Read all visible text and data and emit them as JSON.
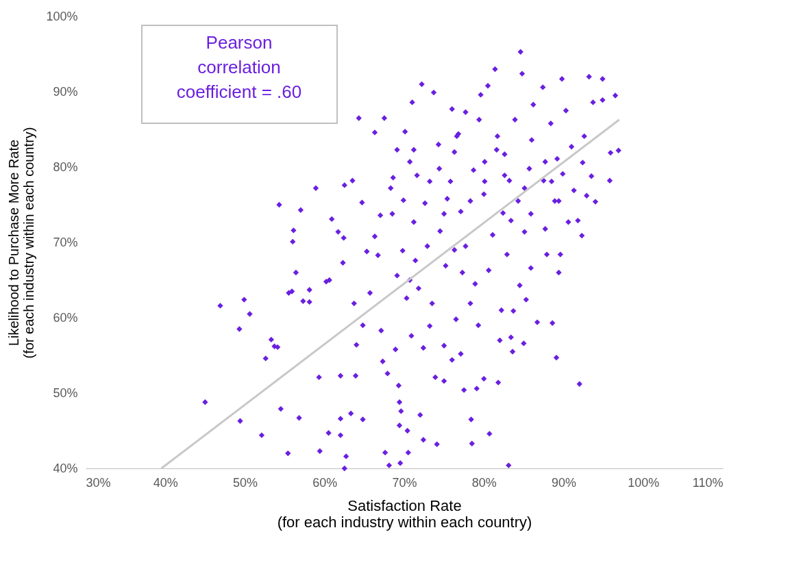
{
  "chart_data": {
    "type": "scatter",
    "xlabel": "Satisfaction Rate\n(for each industry within each country)",
    "ylabel": "Likelihood to Purchase More Rate\n(for each industry within each country)",
    "annotations": [
      "Pearson\ncorrelation\ncoefficient = .60"
    ],
    "xlim": [
      30,
      110
    ],
    "ylim": [
      40,
      100
    ],
    "xticks": [
      {
        "value": 30,
        "label": "30%"
      },
      {
        "value": 40,
        "label": "40%"
      },
      {
        "value": 50,
        "label": "50%"
      },
      {
        "value": 60,
        "label": "60%"
      },
      {
        "value": 70,
        "label": "70%"
      },
      {
        "value": 80,
        "label": "80%"
      },
      {
        "value": 90,
        "label": "90%"
      },
      {
        "value": 100,
        "label": "100%"
      },
      {
        "value": 110,
        "label": "110%"
      }
    ],
    "yticks": [
      {
        "value": 40,
        "label": "40%"
      },
      {
        "value": 50,
        "label": "50%"
      },
      {
        "value": 60,
        "label": "60%"
      },
      {
        "value": 70,
        "label": "70%"
      },
      {
        "value": 80,
        "label": "80%"
      },
      {
        "value": 90,
        "label": "90%"
      },
      {
        "value": 100,
        "label": "100%"
      }
    ],
    "grid": false,
    "marker": "diamond",
    "series": [
      {
        "color": "#6a1fe0",
        "x": [
          45.0,
          46.9,
          49.4,
          49.3,
          49.9,
          50.6,
          52.1,
          52.6,
          53.3,
          53.7,
          54.1,
          54.3,
          54.5,
          55.4,
          55.5,
          55.9,
          56.0,
          56.1,
          56.4,
          56.8,
          57.0,
          57.3,
          58.1,
          58.1,
          58.9,
          59.3,
          59.4,
          60.2,
          60.6,
          60.5,
          60.9,
          61.7,
          62.0,
          62.0,
          62.0,
          62.3,
          62.4,
          62.5,
          62.5,
          62.7,
          63.3,
          63.5,
          63.7,
          63.9,
          64.0,
          64.3,
          64.7,
          64.8,
          64.8,
          65.3,
          65.7,
          66.3,
          66.3,
          66.7,
          67.0,
          67.1,
          67.3,
          67.5,
          67.6,
          67.9,
          68.1,
          68.3,
          68.5,
          68.6,
          68.9,
          69.1,
          69.1,
          69.3,
          69.4,
          69.4,
          69.5,
          69.6,
          69.8,
          69.9,
          70.1,
          70.3,
          70.4,
          70.5,
          70.7,
          70.9,
          71.0,
          71.2,
          71.2,
          71.4,
          71.6,
          71.8,
          72.0,
          72.2,
          72.4,
          72.4,
          72.6,
          72.9,
          73.2,
          73.5,
          73.7,
          73.9,
          74.1,
          74.3,
          74.4,
          74.5,
          75.0,
          75.0,
          75.2,
          75.4,
          75.8,
          76.0,
          76.0,
          76.3,
          76.3,
          76.5,
          76.8,
          77.1,
          77.1,
          77.3,
          77.5,
          77.7,
          77.7,
          78.3,
          78.4,
          78.5,
          78.7,
          78.9,
          79.1,
          79.3,
          79.4,
          79.6,
          80.0,
          80.0,
          80.5,
          80.6,
          80.7,
          81.1,
          81.4,
          81.6,
          81.8,
          82.0,
          82.2,
          82.4,
          82.6,
          82.9,
          83.1,
          83.2,
          83.4,
          83.6,
          83.7,
          83.9,
          84.3,
          84.5,
          84.6,
          84.8,
          85.0,
          85.1,
          85.3,
          85.7,
          85.9,
          86.0,
          86.2,
          86.7,
          87.4,
          87.5,
          87.7,
          87.9,
          88.4,
          88.6,
          88.9,
          89.1,
          89.2,
          89.4,
          89.6,
          89.8,
          89.9,
          90.3,
          90.6,
          91.0,
          91.3,
          91.8,
          92.0,
          92.3,
          92.6,
          92.9,
          93.2,
          93.5,
          93.7,
          94.0,
          94.9,
          94.9,
          95.8,
          95.9,
          96.5,
          96.9,
          92.4,
          80.1,
          82.6,
          85.1,
          78.3,
          75.0,
          87.7,
          89.4,
          80.1,
          73.2,
          76.6,
          81.7,
          83.4,
          85.9,
          70.7,
          88.5
        ],
        "values": [
          48.8,
          61.6,
          46.3,
          58.5,
          62.4,
          60.5,
          44.4,
          54.6,
          57.1,
          56.2,
          56.1,
          75.0,
          47.9,
          42.0,
          63.3,
          63.5,
          70.1,
          71.6,
          66.0,
          46.7,
          74.3,
          62.2,
          62.1,
          63.7,
          77.2,
          52.1,
          42.3,
          64.8,
          65.0,
          44.7,
          73.1,
          71.4,
          52.3,
          46.6,
          44.4,
          67.3,
          70.6,
          77.6,
          40.0,
          41.6,
          47.3,
          78.2,
          61.9,
          52.3,
          56.4,
          86.5,
          75.3,
          59.0,
          46.5,
          68.8,
          63.3,
          84.6,
          70.8,
          68.3,
          73.6,
          58.3,
          54.2,
          86.5,
          42.1,
          52.6,
          40.4,
          77.2,
          73.8,
          78.6,
          55.8,
          82.3,
          65.6,
          51.0,
          48.8,
          45.7,
          40.7,
          47.6,
          68.9,
          75.6,
          84.7,
          62.6,
          45.0,
          42.1,
          65.0,
          57.6,
          88.6,
          72.7,
          82.3,
          67.6,
          78.9,
          63.9,
          47.1,
          91.0,
          56.0,
          43.8,
          75.2,
          69.5,
          58.9,
          61.9,
          89.9,
          52.1,
          43.2,
          83.0,
          79.8,
          71.5,
          56.3,
          51.6,
          66.9,
          75.8,
          78.1,
          87.7,
          54.4,
          82.0,
          69.0,
          59.8,
          84.4,
          74.1,
          55.2,
          66.0,
          50.4,
          87.3,
          69.5,
          61.9,
          46.5,
          43.3,
          79.6,
          64.5,
          50.6,
          59.0,
          86.3,
          89.6,
          76.4,
          51.9,
          90.8,
          66.3,
          44.6,
          71.0,
          93.0,
          82.3,
          51.4,
          57.0,
          61.0,
          73.9,
          81.7,
          68.4,
          40.4,
          78.2,
          57.4,
          55.5,
          60.9,
          86.3,
          75.5,
          64.3,
          95.3,
          92.4,
          56.6,
          71.4,
          62.4,
          79.8,
          66.6,
          83.6,
          88.3,
          59.4,
          90.6,
          78.2,
          71.8,
          68.4,
          85.8,
          59.3,
          75.5,
          54.7,
          81.1,
          66.0,
          68.4,
          91.7,
          79.1,
          87.5,
          72.7,
          82.7,
          76.9,
          72.9,
          51.2,
          70.9,
          84.1,
          76.2,
          92.0,
          78.8,
          88.6,
          75.4,
          91.7,
          88.9,
          78.2,
          81.9,
          89.5,
          82.2,
          80.6,
          78.1,
          78.9,
          77.2,
          75.5,
          73.8,
          80.7,
          75.5,
          80.7,
          78.1,
          84.1,
          84.1,
          72.9,
          73.8,
          80.7,
          78.1
        ]
      },
      {
        "type": "line",
        "marker": "none",
        "color": "#c8c8c8",
        "x": [
          39.5,
          97.0
        ],
        "values": [
          40.0,
          86.3
        ]
      }
    ]
  }
}
